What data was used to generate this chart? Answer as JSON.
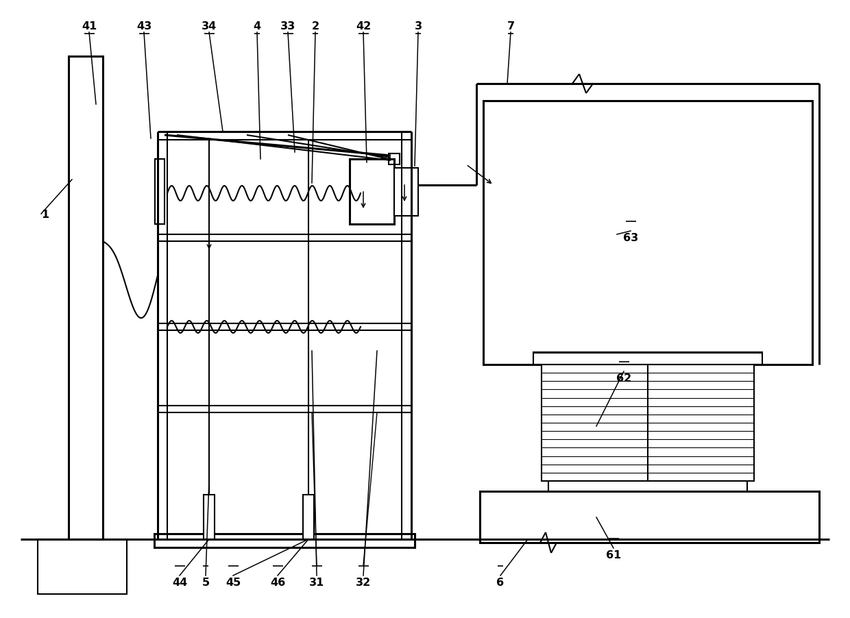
{
  "bg_color": "#ffffff",
  "lc": "#000000",
  "lw": 1.5,
  "tlw": 2.2,
  "fig_w": 12.4,
  "fig_h": 9.03,
  "dpi": 100,
  "label_fs": 11.5
}
